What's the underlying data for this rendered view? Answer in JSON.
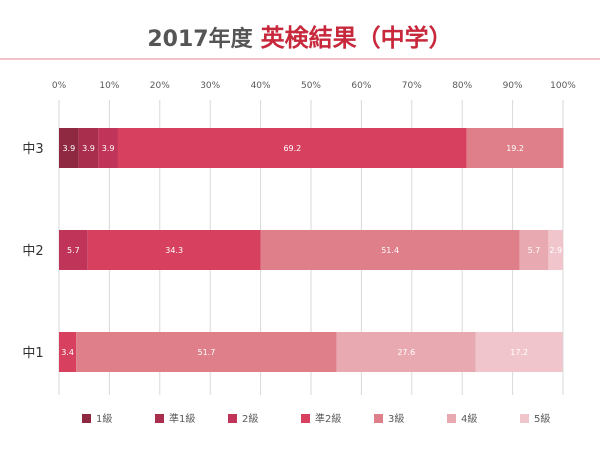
{
  "title": {
    "year": "2017年度",
    "main": "英検結果（中学）"
  },
  "colors": {
    "title_year": "#555555",
    "title_main": "#c8283c",
    "title_rule": "#f3c2c9",
    "grid": "#d9d9d9",
    "tick_text": "#595959",
    "category_text": "#333333",
    "label_text": "#ffffff"
  },
  "chart_data": {
    "type": "bar",
    "orientation": "horizontal",
    "stacked": "percent",
    "categories": [
      "中3",
      "中2",
      "中1"
    ],
    "x_ticks": [
      "0%",
      "10%",
      "20%",
      "30%",
      "40%",
      "50%",
      "60%",
      "70%",
      "80%",
      "90%",
      "100%"
    ],
    "xlim": [
      0,
      100
    ],
    "grid": true,
    "legend_position": "bottom",
    "series": [
      {
        "name": "1級",
        "color": "#8f2942",
        "values": [
          3.9,
          0,
          0
        ],
        "labels": [
          "3.9",
          "",
          ""
        ]
      },
      {
        "name": "準1級",
        "color": "#a92d4c",
        "values": [
          3.9,
          0,
          0
        ],
        "labels": [
          "3.9",
          "",
          ""
        ]
      },
      {
        "name": "2級",
        "color": "#c0345a",
        "values": [
          3.9,
          5.7,
          0
        ],
        "labels": [
          "3.9",
          "5.7",
          ""
        ]
      },
      {
        "name": "準2級",
        "color": "#d7405f",
        "values": [
          69.2,
          34.3,
          3.4
        ],
        "labels": [
          "69.2",
          "34.3",
          "3.4"
        ]
      },
      {
        "name": "3級",
        "color": "#de7f89",
        "values": [
          19.2,
          51.4,
          51.7
        ],
        "labels": [
          "19.2",
          "51.4",
          "51.7"
        ]
      },
      {
        "name": "4級",
        "color": "#e9a9b1",
        "values": [
          0,
          5.7,
          27.6
        ],
        "labels": [
          "",
          "5.7",
          "27.6"
        ]
      },
      {
        "name": "5級",
        "color": "#f0c6cc",
        "values": [
          0,
          2.9,
          17.2
        ],
        "labels": [
          "",
          "2.9",
          "17.2"
        ]
      }
    ]
  }
}
